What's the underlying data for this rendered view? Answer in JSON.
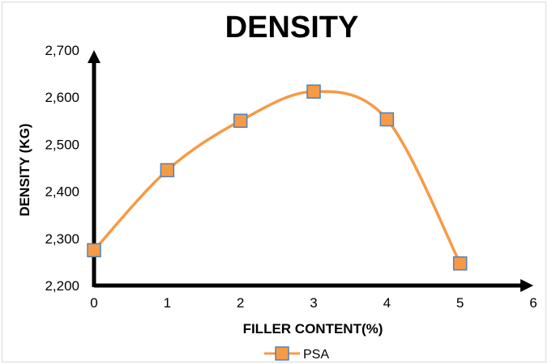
{
  "chart_data": {
    "type": "line",
    "title": "DENSITY",
    "xlabel": "FILLER CONTENT(%)",
    "ylabel": "DENSITY (KG)",
    "x_ticks": [
      "0",
      "1",
      "2",
      "3",
      "4",
      "5",
      "6"
    ],
    "y_ticks": [
      "2,200",
      "2,300",
      "2,400",
      "2,500",
      "2,600",
      "2,700"
    ],
    "xlim": [
      0,
      6
    ],
    "ylim": [
      2200,
      2700
    ],
    "smooth": true,
    "grid": false,
    "legend_position": "bottom",
    "series": [
      {
        "name": "PSA",
        "line_color": "#F79A45",
        "marker_fill": "#F79A45",
        "marker_edge": "#4F81BD",
        "marker": "square",
        "points": [
          {
            "x": 0,
            "y": 2275
          },
          {
            "x": 1,
            "y": 2445
          },
          {
            "x": 2,
            "y": 2550
          },
          {
            "x": 3,
            "y": 2612
          },
          {
            "x": 4,
            "y": 2553
          },
          {
            "x": 5,
            "y": 2247
          }
        ]
      }
    ]
  }
}
